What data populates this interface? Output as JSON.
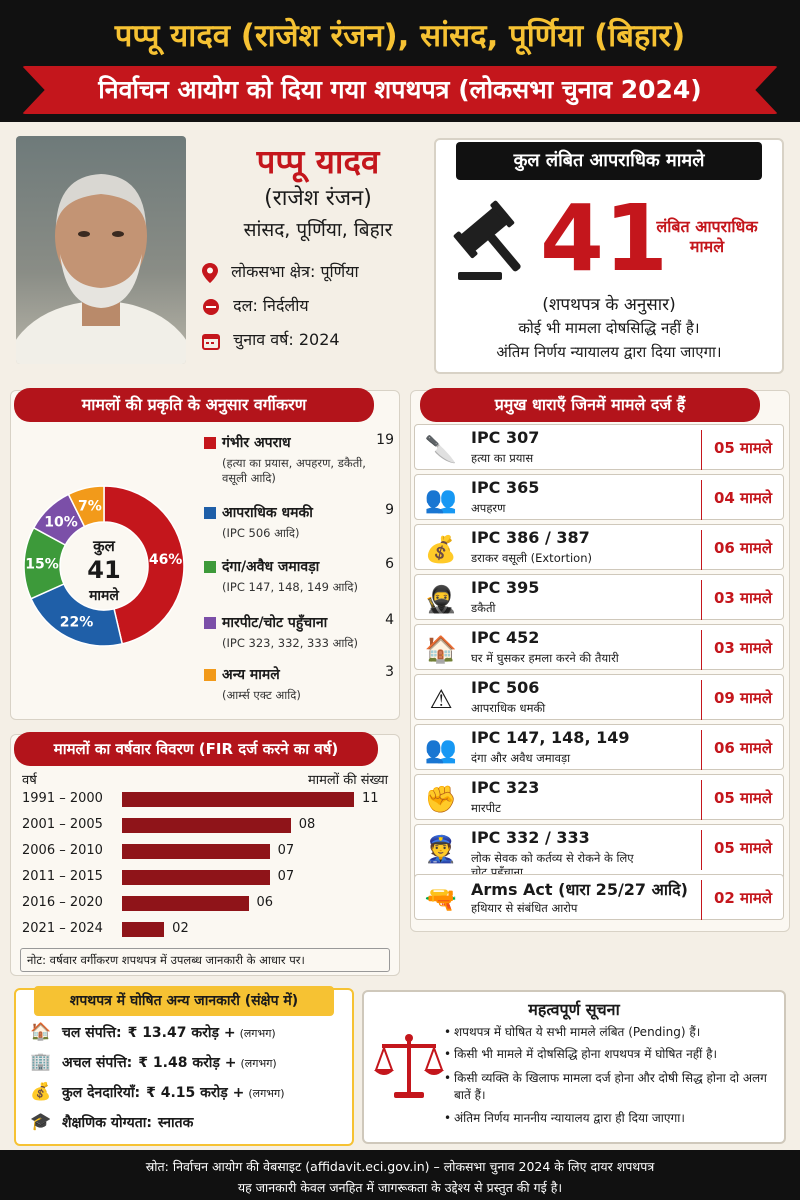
{
  "header": {
    "title": "पप्पू यादव (राजेश रंजन), सांसद, पूर्णिया (बिहार)",
    "subtitle": "निर्वाचन आयोग को दिया गया शपथपत्र (लोकसभा चुनाव 2024)"
  },
  "profile": {
    "name": "पप्पू यादव",
    "alias": "(राजेश रंजन)",
    "role": "सांसद, पूर्णिया, बिहार",
    "constituency": "लोकसभा क्षेत्र: पूर्णिया",
    "party": "दल: निर्दलीय",
    "election_year": "चुनाव वर्ष: 2024"
  },
  "cases_summary": {
    "heading": "कुल लंबित आपराधिक मामले",
    "total": "41",
    "label": "लंबित आपराधिक मामले",
    "note1": "(शपथपत्र के अनुसार)",
    "note2": "कोई भी मामला दोषसिद्धि नहीं है।",
    "note3": "अंतिम निर्णय न्यायालय द्वारा दिया जाएगा।"
  },
  "category_section": {
    "heading": "मामलों की प्रकृति के अनुसार वर्गीकरण",
    "donut_center_top": "कुल",
    "donut_center_num": "41",
    "donut_center_bottom": "मामले",
    "items": [
      {
        "label": "गंभीर अपराध",
        "sub": "(हत्या का प्रयास, अपहरण, डकैती, वसूली आदि)",
        "count": "19",
        "pct": "46%",
        "color": "#c4161c"
      },
      {
        "label": "आपराधिक धमकी",
        "sub": "(IPC 506 आदि)",
        "count": "9",
        "pct": "22%",
        "color": "#1f5fa8"
      },
      {
        "label": "दंगा/अवैध जमावड़ा",
        "sub": "(IPC 147, 148, 149 आदि)",
        "count": "6",
        "pct": "15%",
        "color": "#3d9a3a"
      },
      {
        "label": "मारपीट/चोट पहुँचाना",
        "sub": "(IPC 323, 332, 333 आदि)",
        "count": "4",
        "pct": "10%",
        "color": "#7b4fa8"
      },
      {
        "label": "अन्य मामले",
        "sub": "(आर्म्स एक्ट आदि)",
        "count": "3",
        "pct": "7%",
        "color": "#f29a1a"
      }
    ]
  },
  "sections_panel": {
    "heading": "प्रमुख धाराएँ जिनमें मामले दर्ज हैं",
    "rows": [
      {
        "code": "IPC 307",
        "desc": "हत्या का प्रयास",
        "count": "05 मामले",
        "icon": "knife-icon",
        "glyph": "🔪"
      },
      {
        "code": "IPC 365",
        "desc": "अपहरण",
        "count": "04 मामले",
        "icon": "kidnap-icon",
        "glyph": "👥"
      },
      {
        "code": "IPC 386 / 387",
        "desc": "डराकर वसूली (Extortion)",
        "count": "06 मामले",
        "icon": "money-bag-icon",
        "glyph": "💰"
      },
      {
        "code": "IPC 395",
        "desc": "डकैती",
        "count": "03 मामले",
        "icon": "robber-icon",
        "glyph": "🥷"
      },
      {
        "code": "IPC 452",
        "desc": "घर में घुसकर हमला करने की तैयारी",
        "count": "03 मामले",
        "icon": "house-icon",
        "glyph": "🏠"
      },
      {
        "code": "IPC 506",
        "desc": "आपराधिक धमकी",
        "count": "09 मामले",
        "icon": "warning-icon",
        "glyph": "⚠"
      },
      {
        "code": "IPC 147, 148, 149",
        "desc": "दंगा और अवैध जमावड़ा",
        "count": "06 मामले",
        "icon": "crowd-icon",
        "glyph": "👥"
      },
      {
        "code": "IPC 323",
        "desc": "मारपीट",
        "count": "05 मामले",
        "icon": "fist-icon",
        "glyph": "✊"
      },
      {
        "code": "IPC 332 / 333",
        "desc": "लोक सेवक को कर्तव्य से रोकने के लिए",
        "desc2": "चोट पहुँचाना",
        "count": "05 मामले",
        "icon": "police-icon",
        "glyph": "👮"
      },
      {
        "code": "Arms Act (धारा 25/27 आदि)",
        "desc": "हथियार से संबंधित आरोप",
        "count": "02 मामले",
        "icon": "gun-icon",
        "glyph": "🔫"
      }
    ]
  },
  "yearwise_section": {
    "heading": "मामलों का वर्षवार विवरण (FIR दर्ज करने का वर्ष)",
    "col_year": "वर्ष",
    "col_count": "मामलों की संख्या",
    "note": "नोट: वर्षवार वर्गीकरण शपथपत्र में उपलब्ध जानकारी के आधार पर।"
  },
  "chart_data": {
    "type": "bar",
    "orientation": "horizontal",
    "categories": [
      "1991 – 2000",
      "2001 – 2005",
      "2006 – 2010",
      "2011 – 2015",
      "2016 – 2020",
      "2021 – 2024"
    ],
    "values": [
      11,
      8,
      7,
      7,
      6,
      2
    ],
    "value_labels": [
      "11",
      "08",
      "07",
      "07",
      "06",
      "02"
    ],
    "xlabel": "मामलों की संख्या",
    "ylabel": "वर्ष",
    "xlim": [
      0,
      11
    ]
  },
  "affidavit_info": {
    "heading": "शपथपत्र में घोषित अन्य जानकारी (संक्षेप में)",
    "rows": [
      {
        "icon": "house-icon",
        "glyph": "🏠",
        "label": "चल संपत्ति:",
        "value": "₹ 13.47 करोड़ +",
        "note": "(लगभग)"
      },
      {
        "icon": "building-icon",
        "glyph": "🏢",
        "label": "अचल संपत्ति:",
        "value": "₹ 1.48 करोड़ +",
        "note": "(लगभग)"
      },
      {
        "icon": "money-bag-icon",
        "glyph": "💰",
        "label": "कुल देनदारियाँ:",
        "value": "₹ 4.15 करोड़ +",
        "note": "(लगभग)"
      },
      {
        "icon": "graduation-cap-icon",
        "glyph": "🎓",
        "label": "शैक्षणिक योग्यता:",
        "value": "स्नातक",
        "note": ""
      }
    ]
  },
  "important_notice": {
    "heading": "महत्वपूर्ण सूचना",
    "bullets": [
      "शपथपत्र में घोषित ये सभी मामले लंबित (Pending) हैं।",
      "किसी भी मामले में दोषसिद्धि होना शपथपत्र में घोषित नहीं है।",
      "किसी व्यक्ति के खिलाफ मामला दर्ज होना और दोषी सिद्ध होना दो अलग बातें हैं।",
      "अंतिम निर्णय माननीय न्यायालय द्वारा ही दिया जाएगा।"
    ]
  },
  "footer": {
    "line1": "स्रोत: निर्वाचन आयोग की वेबसाइट (affidavit.eci.gov.in) – लोकसभा चुनाव 2024 के लिए दायर शपथपत्र",
    "line2": "यह जानकारी केवल जनहित में जागरूकता के उद्देश्य से प्रस्तुत की गई है।"
  }
}
